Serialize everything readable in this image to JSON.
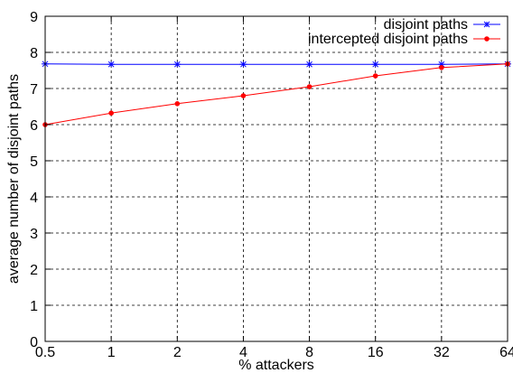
{
  "chart_data": {
    "type": "line",
    "title": "",
    "xlabel": "% attackers",
    "ylabel": "average number of disjoint paths",
    "x_scale": "log2",
    "x": [
      0.5,
      1,
      2,
      4,
      8,
      16,
      32,
      64
    ],
    "x_tick_labels": [
      "0.5",
      "1",
      "2",
      "4",
      "8",
      "16",
      "32",
      "64"
    ],
    "ylim": [
      0,
      9
    ],
    "y_ticks": [
      0,
      1,
      2,
      3,
      4,
      5,
      6,
      7,
      8,
      9
    ],
    "y_tick_labels": [
      "0",
      "1",
      "2",
      "3",
      "4",
      "5",
      "6",
      "7",
      "8",
      "9"
    ],
    "grid": true,
    "legend_position": "top-right",
    "series": [
      {
        "name": "disjoint paths",
        "color": "#0000ff",
        "marker": "star",
        "values": [
          7.68,
          7.67,
          7.67,
          7.67,
          7.67,
          7.67,
          7.67,
          7.68
        ]
      },
      {
        "name": "intercepted disjoint paths",
        "color": "#ff0000",
        "marker": "dot",
        "values": [
          6.0,
          6.32,
          6.58,
          6.8,
          7.05,
          7.35,
          7.58,
          7.68
        ]
      }
    ]
  }
}
